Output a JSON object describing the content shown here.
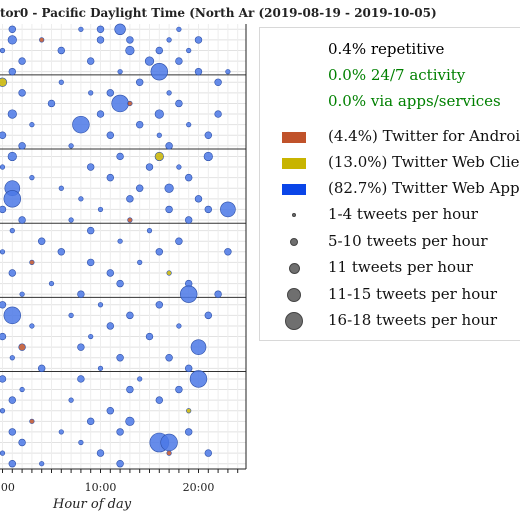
{
  "header": {
    "title": "tor0 - Pacific Daylight Time (North Ar  (2019-08-19 - 2019-10-05)"
  },
  "legend": {
    "stats": [
      {
        "label": "0.4% repetitive",
        "color": "#000000"
      },
      {
        "label": "0.0% 24/7 activity",
        "color": "#008000"
      },
      {
        "label": "0.0% via apps/services",
        "color": "#008000"
      }
    ],
    "sources": [
      {
        "label": "(4.4%) Twitter for Androic",
        "color": "#c0522a"
      },
      {
        "label": "(13.0%) Twitter Web Clien",
        "color": "#c8b400"
      },
      {
        "label": "(82.7%) Twitter Web App",
        "color": "#0a45e8"
      }
    ],
    "sizes": [
      {
        "label": "1-4 tweets per hour",
        "marker": "size-1"
      },
      {
        "label": "5-10 tweets per hour",
        "marker": "size-2"
      },
      {
        "label": "11 tweets per hour",
        "marker": "size-3"
      },
      {
        "label": "11-15 tweets per hour",
        "marker": "size-4"
      },
      {
        "label": "16-18 tweets per hour",
        "marker": "size-5"
      }
    ]
  },
  "chart_data": {
    "type": "scatter",
    "title": "tor0 - Pacific Daylight Time (North Ar  (2019-08-19 - 2019-10-05)",
    "xlabel": "Hour of day",
    "x_ticks": [
      "0:00",
      "10:00",
      "20:00"
    ],
    "xlim": [
      0,
      24
    ],
    "grid": true,
    "colors": {
      "android": "#c0522a",
      "webclient": "#c8b400",
      "webapp": "#4b78e6"
    },
    "points": [
      {
        "day": 0,
        "hour": 1,
        "count": 3,
        "source": "webapp"
      },
      {
        "day": 0,
        "hour": 8,
        "count": 2,
        "source": "webapp"
      },
      {
        "day": 0,
        "hour": 10,
        "count": 3,
        "source": "webapp"
      },
      {
        "day": 0,
        "hour": 12,
        "count": 7,
        "source": "webapp"
      },
      {
        "day": 0,
        "hour": 18,
        "count": 2,
        "source": "webapp"
      },
      {
        "day": 1,
        "hour": 1,
        "count": 5,
        "source": "webapp"
      },
      {
        "day": 1,
        "hour": 4,
        "count": 2,
        "source": "android"
      },
      {
        "day": 1,
        "hour": 10,
        "count": 3,
        "source": "webapp"
      },
      {
        "day": 1,
        "hour": 13,
        "count": 4,
        "source": "webapp"
      },
      {
        "day": 1,
        "hour": 17,
        "count": 2,
        "source": "webapp"
      },
      {
        "day": 1,
        "hour": 20,
        "count": 3,
        "source": "webapp"
      },
      {
        "day": 2,
        "hour": 0,
        "count": 2,
        "source": "webapp"
      },
      {
        "day": 2,
        "hour": 6,
        "count": 3,
        "source": "webapp"
      },
      {
        "day": 2,
        "hour": 13,
        "count": 6,
        "source": "webapp"
      },
      {
        "day": 2,
        "hour": 16,
        "count": 4,
        "source": "webapp"
      },
      {
        "day": 2,
        "hour": 19,
        "count": 2,
        "source": "webapp"
      },
      {
        "day": 3,
        "hour": 2,
        "count": 3,
        "source": "webapp"
      },
      {
        "day": 3,
        "hour": 9,
        "count": 4,
        "source": "webapp"
      },
      {
        "day": 3,
        "hour": 15,
        "count": 5,
        "source": "webapp"
      },
      {
        "day": 3,
        "hour": 18,
        "count": 3,
        "source": "webapp"
      },
      {
        "day": 4,
        "hour": 1,
        "count": 4,
        "source": "webapp"
      },
      {
        "day": 4,
        "hour": 12,
        "count": 2,
        "source": "webapp"
      },
      {
        "day": 4,
        "hour": 16,
        "count": 14,
        "source": "webapp"
      },
      {
        "day": 4,
        "hour": 20,
        "count": 3,
        "source": "webapp"
      },
      {
        "day": 4,
        "hour": 23,
        "count": 2,
        "source": "webapp"
      },
      {
        "day": 5,
        "hour": 0,
        "count": 5,
        "source": "webclient"
      },
      {
        "day": 5,
        "hour": 6,
        "count": 2,
        "source": "webapp"
      },
      {
        "day": 5,
        "hour": 14,
        "count": 3,
        "source": "webapp"
      },
      {
        "day": 5,
        "hour": 22,
        "count": 4,
        "source": "webapp"
      },
      {
        "day": 6,
        "hour": 2,
        "count": 3,
        "source": "webapp"
      },
      {
        "day": 6,
        "hour": 9,
        "count": 2,
        "source": "webapp"
      },
      {
        "day": 6,
        "hour": 11,
        "count": 4,
        "source": "webapp"
      },
      {
        "day": 6,
        "hour": 17,
        "count": 2,
        "source": "webapp"
      },
      {
        "day": 7,
        "hour": 5,
        "count": 3,
        "source": "webapp"
      },
      {
        "day": 7,
        "hour": 12,
        "count": 14,
        "source": "webapp"
      },
      {
        "day": 7,
        "hour": 13,
        "count": 2,
        "source": "android"
      },
      {
        "day": 7,
        "hour": 18,
        "count": 4,
        "source": "webapp"
      },
      {
        "day": 8,
        "hour": 1,
        "count": 6,
        "source": "webapp"
      },
      {
        "day": 8,
        "hour": 10,
        "count": 3,
        "source": "webapp"
      },
      {
        "day": 8,
        "hour": 16,
        "count": 5,
        "source": "webapp"
      },
      {
        "day": 8,
        "hour": 22,
        "count": 3,
        "source": "webapp"
      },
      {
        "day": 9,
        "hour": 3,
        "count": 2,
        "source": "webapp"
      },
      {
        "day": 9,
        "hour": 8,
        "count": 14,
        "source": "webapp"
      },
      {
        "day": 9,
        "hour": 14,
        "count": 4,
        "source": "webapp"
      },
      {
        "day": 9,
        "hour": 19,
        "count": 2,
        "source": "webapp"
      },
      {
        "day": 10,
        "hour": 0,
        "count": 4,
        "source": "webapp"
      },
      {
        "day": 10,
        "hour": 11,
        "count": 3,
        "source": "webapp"
      },
      {
        "day": 10,
        "hour": 16,
        "count": 2,
        "source": "webapp"
      },
      {
        "day": 10,
        "hour": 21,
        "count": 4,
        "source": "webapp"
      },
      {
        "day": 11,
        "hour": 2,
        "count": 3,
        "source": "webapp"
      },
      {
        "day": 11,
        "hour": 7,
        "count": 2,
        "source": "webapp"
      },
      {
        "day": 11,
        "hour": 17,
        "count": 3,
        "source": "webapp"
      },
      {
        "day": 12,
        "hour": 1,
        "count": 5,
        "source": "webapp"
      },
      {
        "day": 12,
        "hour": 12,
        "count": 3,
        "source": "webapp"
      },
      {
        "day": 12,
        "hour": 16,
        "count": 5,
        "source": "webclient"
      },
      {
        "day": 12,
        "hour": 21,
        "count": 6,
        "source": "webapp"
      },
      {
        "day": 13,
        "hour": 0,
        "count": 2,
        "source": "webapp"
      },
      {
        "day": 13,
        "hour": 9,
        "count": 4,
        "source": "webapp"
      },
      {
        "day": 13,
        "hour": 15,
        "count": 3,
        "source": "webapp"
      },
      {
        "day": 13,
        "hour": 18,
        "count": 2,
        "source": "webapp"
      },
      {
        "day": 14,
        "hour": 3,
        "count": 2,
        "source": "webapp"
      },
      {
        "day": 14,
        "hour": 11,
        "count": 3,
        "source": "webapp"
      },
      {
        "day": 14,
        "hour": 19,
        "count": 4,
        "source": "webapp"
      },
      {
        "day": 15,
        "hour": 1,
        "count": 11,
        "source": "webapp"
      },
      {
        "day": 15,
        "hour": 6,
        "count": 2,
        "source": "webapp"
      },
      {
        "day": 15,
        "hour": 14,
        "count": 3,
        "source": "webapp"
      },
      {
        "day": 15,
        "hour": 17,
        "count": 5,
        "source": "webapp"
      },
      {
        "day": 16,
        "hour": 1,
        "count": 14,
        "source": "webapp"
      },
      {
        "day": 16,
        "hour": 8,
        "count": 2,
        "source": "webapp"
      },
      {
        "day": 16,
        "hour": 13,
        "count": 4,
        "source": "webapp"
      },
      {
        "day": 16,
        "hour": 20,
        "count": 3,
        "source": "webapp"
      },
      {
        "day": 17,
        "hour": 0,
        "count": 3,
        "source": "webapp"
      },
      {
        "day": 17,
        "hour": 10,
        "count": 2,
        "source": "webapp"
      },
      {
        "day": 17,
        "hour": 17,
        "count": 4,
        "source": "webapp"
      },
      {
        "day": 17,
        "hour": 21,
        "count": 4,
        "source": "webapp"
      },
      {
        "day": 17,
        "hour": 23,
        "count": 11,
        "source": "webapp"
      },
      {
        "day": 18,
        "hour": 2,
        "count": 4,
        "source": "webapp"
      },
      {
        "day": 18,
        "hour": 7,
        "count": 2,
        "source": "webapp"
      },
      {
        "day": 18,
        "hour": 13,
        "count": 2,
        "source": "android"
      },
      {
        "day": 18,
        "hour": 19,
        "count": 3,
        "source": "webapp"
      },
      {
        "day": 19,
        "hour": 1,
        "count": 2,
        "source": "webapp"
      },
      {
        "day": 19,
        "hour": 9,
        "count": 3,
        "source": "webapp"
      },
      {
        "day": 19,
        "hour": 15,
        "count": 2,
        "source": "webapp"
      },
      {
        "day": 20,
        "hour": 4,
        "count": 3,
        "source": "webapp"
      },
      {
        "day": 20,
        "hour": 12,
        "count": 2,
        "source": "webapp"
      },
      {
        "day": 20,
        "hour": 18,
        "count": 4,
        "source": "webapp"
      },
      {
        "day": 21,
        "hour": 0,
        "count": 2,
        "source": "webapp"
      },
      {
        "day": 21,
        "hour": 6,
        "count": 3,
        "source": "webapp"
      },
      {
        "day": 21,
        "hour": 16,
        "count": 3,
        "source": "webapp"
      },
      {
        "day": 21,
        "hour": 23,
        "count": 4,
        "source": "webapp"
      },
      {
        "day": 22,
        "hour": 3,
        "count": 2,
        "source": "android"
      },
      {
        "day": 22,
        "hour": 9,
        "count": 3,
        "source": "webapp"
      },
      {
        "day": 22,
        "hour": 14,
        "count": 2,
        "source": "webapp"
      },
      {
        "day": 23,
        "hour": 1,
        "count": 3,
        "source": "webapp"
      },
      {
        "day": 23,
        "hour": 11,
        "count": 4,
        "source": "webapp"
      },
      {
        "day": 23,
        "hour": 17,
        "count": 2,
        "source": "webclient"
      },
      {
        "day": 24,
        "hour": 5,
        "count": 2,
        "source": "webapp"
      },
      {
        "day": 24,
        "hour": 12,
        "count": 3,
        "source": "webapp"
      },
      {
        "day": 24,
        "hour": 19,
        "count": 4,
        "source": "webapp"
      },
      {
        "day": 25,
        "hour": 2,
        "count": 2,
        "source": "webapp"
      },
      {
        "day": 25,
        "hour": 8,
        "count": 3,
        "source": "webapp"
      },
      {
        "day": 25,
        "hour": 19,
        "count": 14,
        "source": "webapp"
      },
      {
        "day": 25,
        "hour": 22,
        "count": 3,
        "source": "webapp"
      },
      {
        "day": 26,
        "hour": 0,
        "count": 3,
        "source": "webapp"
      },
      {
        "day": 26,
        "hour": 10,
        "count": 2,
        "source": "webapp"
      },
      {
        "day": 26,
        "hour": 16,
        "count": 4,
        "source": "webapp"
      },
      {
        "day": 27,
        "hour": 1,
        "count": 14,
        "source": "webapp"
      },
      {
        "day": 27,
        "hour": 7,
        "count": 2,
        "source": "webapp"
      },
      {
        "day": 27,
        "hour": 13,
        "count": 3,
        "source": "webapp"
      },
      {
        "day": 27,
        "hour": 21,
        "count": 4,
        "source": "webapp"
      },
      {
        "day": 28,
        "hour": 3,
        "count": 2,
        "source": "webapp"
      },
      {
        "day": 28,
        "hour": 11,
        "count": 3,
        "source": "webapp"
      },
      {
        "day": 28,
        "hour": 18,
        "count": 2,
        "source": "webapp"
      },
      {
        "day": 29,
        "hour": 0,
        "count": 4,
        "source": "webapp"
      },
      {
        "day": 29,
        "hour": 9,
        "count": 2,
        "source": "webapp"
      },
      {
        "day": 29,
        "hour": 15,
        "count": 3,
        "source": "webapp"
      },
      {
        "day": 30,
        "hour": 2,
        "count": 3,
        "source": "android"
      },
      {
        "day": 30,
        "hour": 8,
        "count": 4,
        "source": "webapp"
      },
      {
        "day": 30,
        "hour": 20,
        "count": 11,
        "source": "webapp"
      },
      {
        "day": 31,
        "hour": 1,
        "count": 2,
        "source": "webapp"
      },
      {
        "day": 31,
        "hour": 12,
        "count": 3,
        "source": "webapp"
      },
      {
        "day": 31,
        "hour": 17,
        "count": 4,
        "source": "webapp"
      },
      {
        "day": 32,
        "hour": 4,
        "count": 3,
        "source": "webapp"
      },
      {
        "day": 32,
        "hour": 10,
        "count": 2,
        "source": "webapp"
      },
      {
        "day": 32,
        "hour": 19,
        "count": 3,
        "source": "webapp"
      },
      {
        "day": 33,
        "hour": 0,
        "count": 3,
        "source": "webapp"
      },
      {
        "day": 33,
        "hour": 8,
        "count": 4,
        "source": "webapp"
      },
      {
        "day": 33,
        "hour": 14,
        "count": 2,
        "source": "webapp"
      },
      {
        "day": 33,
        "hour": 20,
        "count": 14,
        "source": "webapp"
      },
      {
        "day": 34,
        "hour": 2,
        "count": 2,
        "source": "webapp"
      },
      {
        "day": 34,
        "hour": 13,
        "count": 3,
        "source": "webapp"
      },
      {
        "day": 34,
        "hour": 18,
        "count": 4,
        "source": "webapp"
      },
      {
        "day": 35,
        "hour": 1,
        "count": 3,
        "source": "webapp"
      },
      {
        "day": 35,
        "hour": 7,
        "count": 2,
        "source": "webapp"
      },
      {
        "day": 35,
        "hour": 16,
        "count": 3,
        "source": "webapp"
      },
      {
        "day": 36,
        "hour": 0,
        "count": 2,
        "source": "webapp"
      },
      {
        "day": 36,
        "hour": 11,
        "count": 4,
        "source": "webapp"
      },
      {
        "day": 36,
        "hour": 19,
        "count": 2,
        "source": "webclient"
      },
      {
        "day": 37,
        "hour": 3,
        "count": 2,
        "source": "android"
      },
      {
        "day": 37,
        "hour": 9,
        "count": 3,
        "source": "webapp"
      },
      {
        "day": 37,
        "hour": 13,
        "count": 5,
        "source": "webapp"
      },
      {
        "day": 38,
        "hour": 1,
        "count": 4,
        "source": "webapp"
      },
      {
        "day": 38,
        "hour": 6,
        "count": 2,
        "source": "webapp"
      },
      {
        "day": 38,
        "hour": 12,
        "count": 3,
        "source": "webapp"
      },
      {
        "day": 38,
        "hour": 19,
        "count": 3,
        "source": "webapp"
      },
      {
        "day": 39,
        "hour": 2,
        "count": 3,
        "source": "webapp"
      },
      {
        "day": 39,
        "hour": 8,
        "count": 2,
        "source": "webapp"
      },
      {
        "day": 39,
        "hour": 16,
        "count": 16,
        "source": "webapp"
      },
      {
        "day": 39,
        "hour": 17,
        "count": 14,
        "source": "webapp"
      },
      {
        "day": 40,
        "hour": 0,
        "count": 2,
        "source": "webapp"
      },
      {
        "day": 40,
        "hour": 10,
        "count": 3,
        "source": "webapp"
      },
      {
        "day": 40,
        "hour": 17,
        "count": 2,
        "source": "android"
      },
      {
        "day": 40,
        "hour": 21,
        "count": 3,
        "source": "webapp"
      },
      {
        "day": 41,
        "hour": 1,
        "count": 4,
        "source": "webapp"
      },
      {
        "day": 41,
        "hour": 4,
        "count": 2,
        "source": "webapp"
      },
      {
        "day": 41,
        "hour": 12,
        "count": 3,
        "source": "webapp"
      }
    ]
  }
}
